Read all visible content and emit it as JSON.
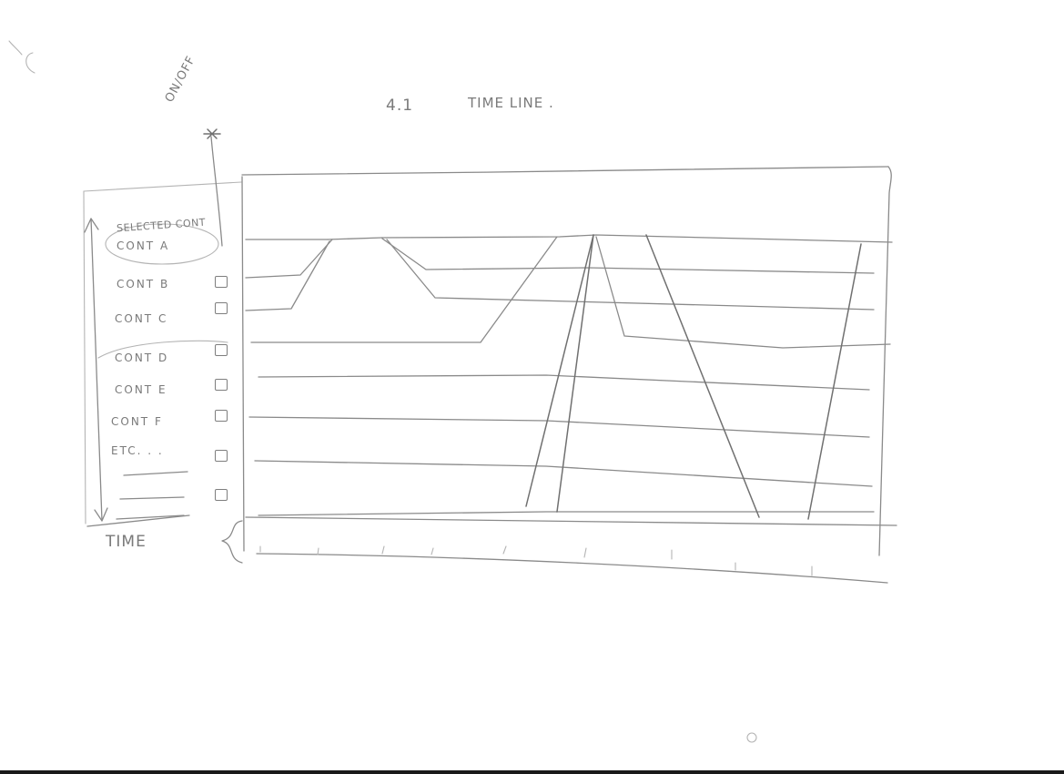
{
  "heading": {
    "number": "4.1",
    "title": "TIME LINE ."
  },
  "toggle_label": "ON/OFF",
  "selected_note": "SELECTED CONT",
  "rows": [
    {
      "label": "CONT A",
      "selected": true,
      "has_checkbox": false
    },
    {
      "label": "CONT B",
      "selected": false,
      "has_checkbox": true
    },
    {
      "label": "CONT C",
      "selected": false,
      "has_checkbox": true
    },
    {
      "label": "CONT D",
      "selected": false,
      "has_checkbox": true
    },
    {
      "label": "CONT E",
      "selected": false,
      "has_checkbox": true
    },
    {
      "label": "CONT F",
      "selected": false,
      "has_checkbox": true
    },
    {
      "label": "ETC. . .",
      "selected": false,
      "has_checkbox": true
    },
    {
      "label": "",
      "selected": false,
      "has_checkbox": true
    }
  ],
  "axis": {
    "label": "TIME"
  },
  "colors": {
    "pencil": "#8a8a8a",
    "paper": "#ffffff"
  }
}
